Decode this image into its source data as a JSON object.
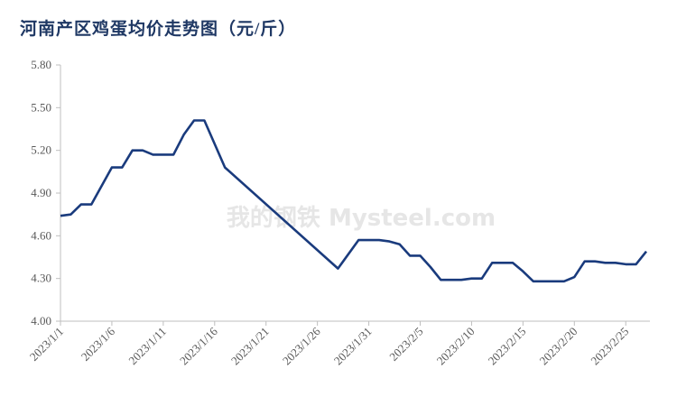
{
  "chart_data": {
    "type": "line",
    "title": "河南产区鸡蛋均价走势图（元/斤）",
    "watermark": "我的钢铁 Mysteel.com",
    "x": [
      "2023/1/1",
      "2023/1/2",
      "2023/1/3",
      "2023/1/4",
      "2023/1/6",
      "2023/1/7",
      "2023/1/8",
      "2023/1/9",
      "2023/1/10",
      "2023/1/12",
      "2023/1/13",
      "2023/1/14",
      "2023/1/15",
      "2023/1/17",
      "2023/1/28",
      "2023/1/30",
      "2023/2/1",
      "2023/2/2",
      "2023/2/3",
      "2023/2/4",
      "2023/2/5",
      "2023/2/6",
      "2023/2/7",
      "2023/2/9",
      "2023/2/10",
      "2023/2/11",
      "2023/2/12",
      "2023/2/14",
      "2023/2/15",
      "2023/2/16",
      "2023/2/19",
      "2023/2/20",
      "2023/2/21",
      "2023/2/22",
      "2023/2/23",
      "2023/2/24",
      "2023/2/25",
      "2023/2/26",
      "2023/2/27"
    ],
    "series": [
      {
        "name": "河南产区鸡蛋均价",
        "color": "#1a3b7d",
        "values": [
          4.74,
          4.75,
          4.82,
          4.82,
          5.08,
          5.08,
          5.2,
          5.2,
          5.17,
          5.17,
          5.31,
          5.41,
          5.41,
          5.08,
          4.37,
          4.57,
          4.57,
          4.56,
          4.54,
          4.46,
          4.46,
          4.38,
          4.29,
          4.29,
          4.3,
          4.3,
          4.41,
          4.41,
          4.35,
          4.28,
          4.28,
          4.31,
          4.42,
          4.42,
          4.41,
          4.41,
          4.4,
          4.4,
          4.49
        ]
      }
    ],
    "xlim": [
      "2023/1/1",
      "2023/2/27"
    ],
    "xticks": [
      "2023/1/1",
      "2023/1/6",
      "2023/1/11",
      "2023/1/16",
      "2023/1/21",
      "2023/1/26",
      "2023/1/31",
      "2023/2/5",
      "2023/2/10",
      "2023/2/15",
      "2023/2/20",
      "2023/2/25"
    ],
    "ylim": [
      4.0,
      5.8
    ],
    "yticks": [
      {
        "value": 4.0,
        "label": "4.00"
      },
      {
        "value": 4.3,
        "label": "4.30"
      },
      {
        "value": 4.6,
        "label": "4.60"
      },
      {
        "value": 4.9,
        "label": "4.90"
      },
      {
        "value": 5.2,
        "label": "5.20"
      },
      {
        "value": 5.5,
        "label": "5.50"
      },
      {
        "value": 5.8,
        "label": "5.80"
      }
    ],
    "grid": false
  }
}
